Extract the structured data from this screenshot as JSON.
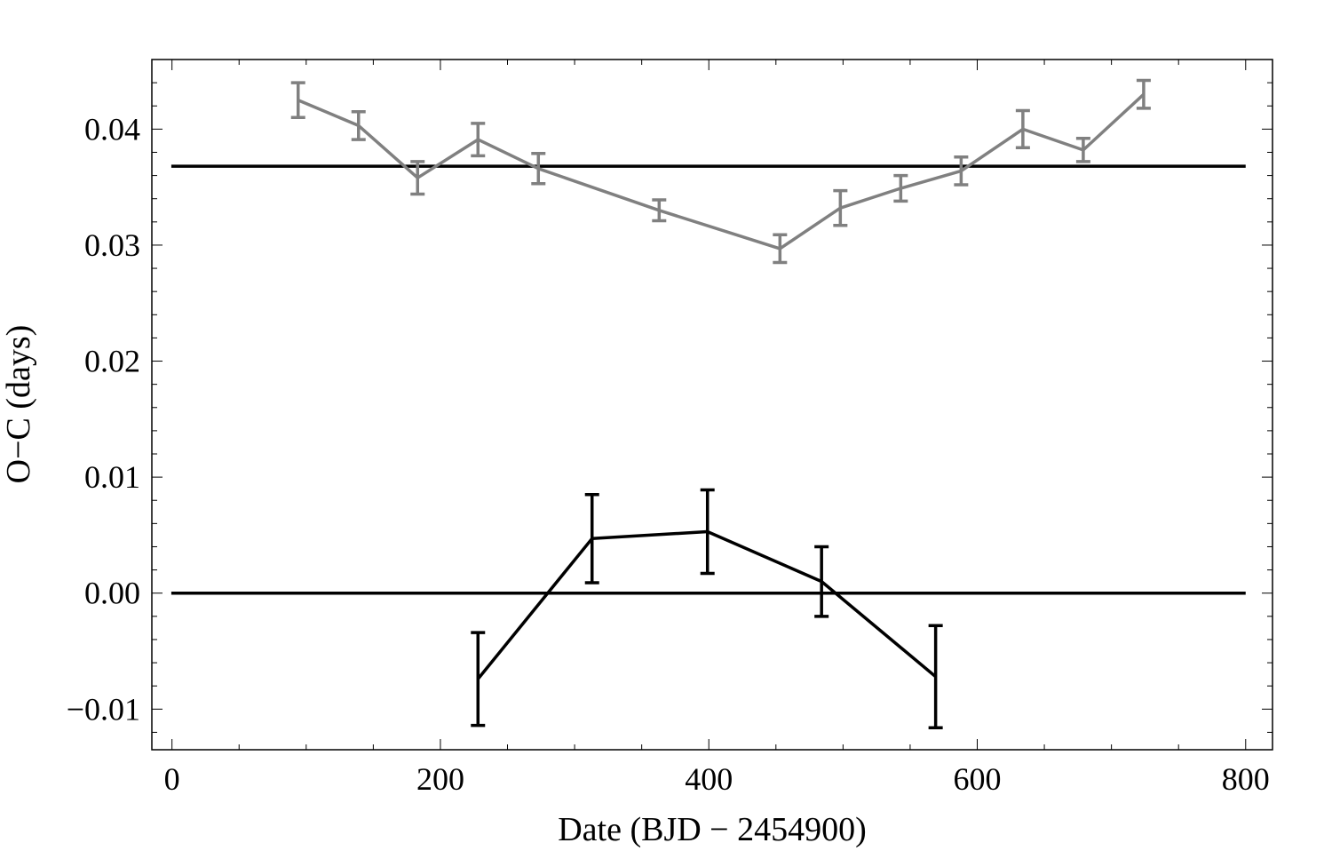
{
  "chart_data": {
    "type": "line",
    "xlabel": "Date (BJD − 2454900)",
    "ylabel": "O−C (days)",
    "xlim": [
      -15,
      820
    ],
    "ylim": [
      -0.0135,
      0.046
    ],
    "x_ticks": [
      0,
      200,
      400,
      600,
      800
    ],
    "x_tick_labels": [
      "0",
      "200",
      "400",
      "600",
      "800"
    ],
    "x_minor_step": 50,
    "y_ticks": [
      -0.01,
      0.0,
      0.01,
      0.02,
      0.03,
      0.04
    ],
    "y_tick_labels": [
      "−0.01",
      "0.00",
      "0.01",
      "0.02",
      "0.03",
      "0.04"
    ],
    "y_minor_step": 0.002,
    "grid": false,
    "reference_lines": [
      {
        "y": 0.0368,
        "x_range": [
          -0.5,
          800
        ],
        "color": "#000000"
      },
      {
        "y": 0.0,
        "x_range": [
          -0.5,
          800
        ],
        "color": "#000000"
      }
    ],
    "series": [
      {
        "color": "#808080",
        "x": [
          94,
          139,
          183,
          228,
          273,
          363,
          453,
          498,
          543,
          588,
          634,
          679,
          724
        ],
        "y": [
          0.0425,
          0.0403,
          0.0358,
          0.0391,
          0.0366,
          0.033,
          0.0297,
          0.0332,
          0.0349,
          0.0364,
          0.04,
          0.0382,
          0.043
        ],
        "yerr": [
          0.0015,
          0.0012,
          0.0014,
          0.0014,
          0.0013,
          0.0009,
          0.0012,
          0.0015,
          0.0011,
          0.0012,
          0.0016,
          0.001,
          0.0012
        ]
      },
      {
        "color": "#000000",
        "x": [
          228,
          313,
          399,
          484,
          569
        ],
        "y": [
          -0.0074,
          0.0047,
          0.0053,
          0.001,
          -0.0072
        ],
        "yerr": [
          0.004,
          0.0038,
          0.0036,
          0.003,
          0.0044
        ]
      }
    ]
  }
}
